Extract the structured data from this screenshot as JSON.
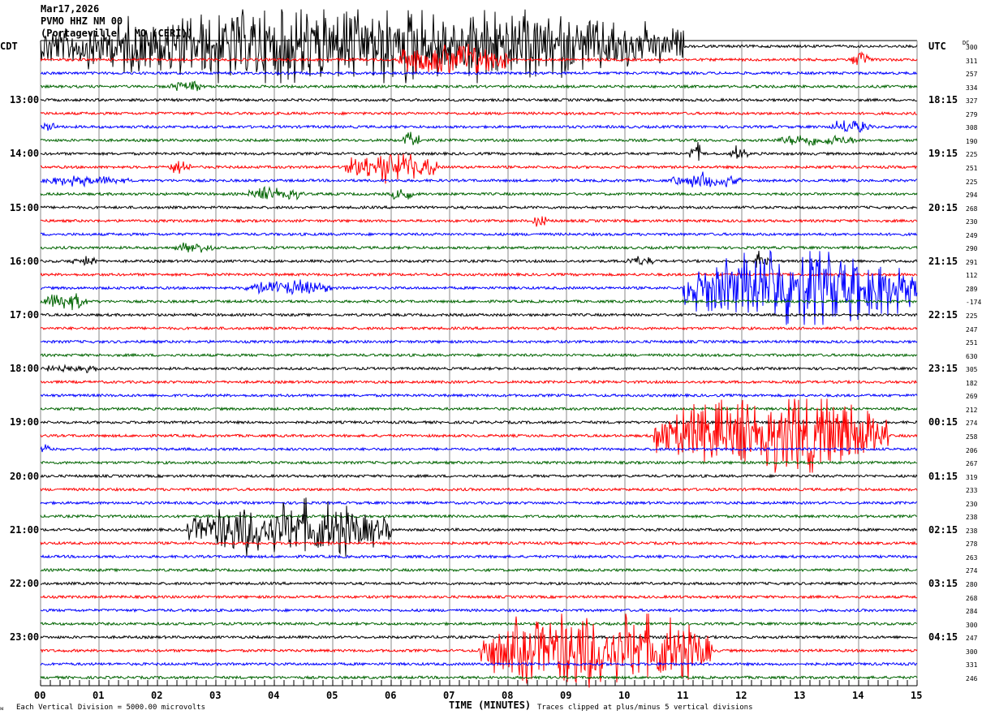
{
  "header": {
    "date": "Mar17,2026",
    "station": "PVMO HHZ NM 00",
    "location": "(Portageville , MO (CERI))"
  },
  "left_tz": "CDT",
  "right_tz": "UTC",
  "dc_label": "DC",
  "footer": {
    "scale_note": "Each Vertical Division = 5000.00 microvolts",
    "xlabel": "TIME (MINUTES)",
    "clip_note": "Traces clipped at plus/minus 5 vertical divisions"
  },
  "chart_data": {
    "type": "line",
    "title": "PVMO HHZ NM 00 helicorder",
    "xlabel": "TIME (MINUTES)",
    "xlim": [
      0,
      15
    ],
    "x_ticks": [
      "00",
      "01",
      "02",
      "03",
      "04",
      "05",
      "06",
      "07",
      "08",
      "09",
      "10",
      "11",
      "12",
      "13",
      "14",
      "15"
    ],
    "trace_count": 48,
    "trace_colors": [
      "#000000",
      "#ff0000",
      "#0000ff",
      "#006400"
    ],
    "left_hour_labels": [
      "13:00",
      "14:00",
      "15:00",
      "16:00",
      "17:00",
      "18:00",
      "19:00",
      "20:00",
      "21:00",
      "22:00",
      "23:00"
    ],
    "right_hour_labels": [
      "18:15",
      "19:15",
      "20:15",
      "21:15",
      "22:15",
      "23:15",
      "00:15",
      "01:15",
      "02:15",
      "03:15",
      "04:15"
    ],
    "dc_offsets": [
      300,
      311,
      257,
      334,
      327,
      279,
      308,
      190,
      225,
      251,
      225,
      294,
      268,
      230,
      249,
      290,
      291,
      112,
      289,
      -174,
      225,
      247,
      251,
      630,
      305,
      182,
      269,
      212,
      274,
      258,
      206,
      267,
      319,
      233,
      230,
      238,
      238,
      278,
      263,
      274,
      280,
      268,
      284,
      300,
      247,
      300,
      331,
      246
    ],
    "events": [
      {
        "trace": 0,
        "start": 0,
        "end": 11,
        "amp": 5
      },
      {
        "trace": 1,
        "start": 6.1,
        "end": 8.0,
        "amp": 2.2
      },
      {
        "trace": 1,
        "start": 13.8,
        "end": 14.2,
        "amp": 0.8
      },
      {
        "trace": 3,
        "start": 2.2,
        "end": 2.8,
        "amp": 0.8
      },
      {
        "trace": 6,
        "start": 0,
        "end": 0.3,
        "amp": 0.8
      },
      {
        "trace": 6,
        "start": 13.5,
        "end": 14.2,
        "amp": 1
      },
      {
        "trace": 7,
        "start": 6.2,
        "end": 6.5,
        "amp": 1
      },
      {
        "trace": 7,
        "start": 12.5,
        "end": 14,
        "amp": 0.8
      },
      {
        "trace": 8,
        "start": 11.1,
        "end": 11.3,
        "amp": 1.5
      },
      {
        "trace": 8,
        "start": 11.8,
        "end": 12.1,
        "amp": 1
      },
      {
        "trace": 9,
        "start": 2.2,
        "end": 2.6,
        "amp": 1
      },
      {
        "trace": 9,
        "start": 5.2,
        "end": 6.8,
        "amp": 2
      },
      {
        "trace": 10,
        "start": 0,
        "end": 1.5,
        "amp": 0.7
      },
      {
        "trace": 10,
        "start": 10.8,
        "end": 12,
        "amp": 1
      },
      {
        "trace": 11,
        "start": 3.5,
        "end": 4.5,
        "amp": 1
      },
      {
        "trace": 11,
        "start": 6.0,
        "end": 6.4,
        "amp": 1
      },
      {
        "trace": 13,
        "start": 8.4,
        "end": 8.7,
        "amp": 0.8
      },
      {
        "trace": 15,
        "start": 2.3,
        "end": 3,
        "amp": 0.7
      },
      {
        "trace": 16,
        "start": 0.5,
        "end": 1,
        "amp": 0.7
      },
      {
        "trace": 16,
        "start": 10,
        "end": 10.5,
        "amp": 0.7
      },
      {
        "trace": 16,
        "start": 12.2,
        "end": 12.5,
        "amp": 1.3
      },
      {
        "trace": 18,
        "start": 3.5,
        "end": 5,
        "amp": 1
      },
      {
        "trace": 18,
        "start": 11,
        "end": 15,
        "amp": 5
      },
      {
        "trace": 19,
        "start": 0,
        "end": 0.8,
        "amp": 1.2
      },
      {
        "trace": 24,
        "start": 0,
        "end": 1,
        "amp": 0.6
      },
      {
        "trace": 29,
        "start": 10.5,
        "end": 14.5,
        "amp": 5
      },
      {
        "trace": 30,
        "start": 0,
        "end": 0.2,
        "amp": 0.7
      },
      {
        "trace": 36,
        "start": 2.5,
        "end": 6,
        "amp": 3.5
      },
      {
        "trace": 45,
        "start": 7.5,
        "end": 11.5,
        "amp": 5
      }
    ]
  }
}
